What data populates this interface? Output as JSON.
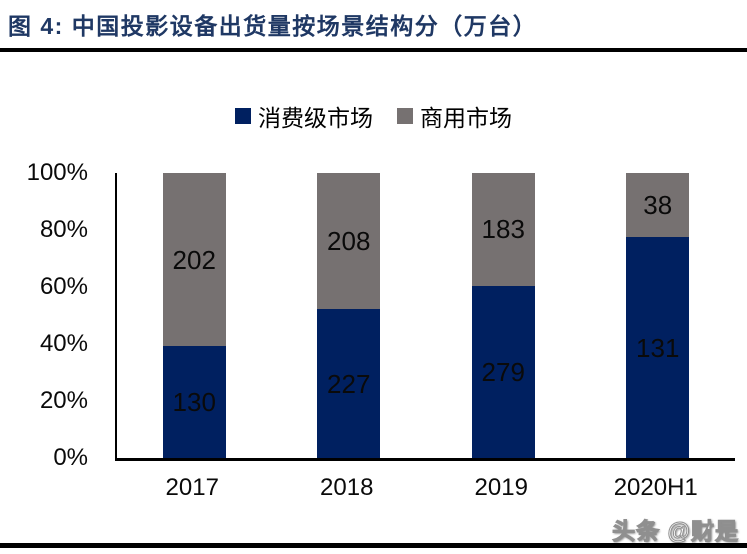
{
  "page": {
    "title": "图 4: 中国投影设备出货量按场景结构分（万台）",
    "watermark": "头条 @财是"
  },
  "colors": {
    "consumer_navy": "#002060",
    "commercial_gray": "#767171",
    "title_navy": "#1F3864",
    "rule_black": "#000000"
  },
  "chart_data": {
    "type": "bar",
    "variant": "100%-stacked-column",
    "title": "中国投影设备出货量按场景结构分（万台）",
    "categories": [
      "2017",
      "2018",
      "2019",
      "2020H1"
    ],
    "series": [
      {
        "name": "消费级市场",
        "color": "#002060",
        "values": [
          130,
          227,
          279,
          131
        ]
      },
      {
        "name": "商用市场",
        "color": "#767171",
        "values": [
          202,
          208,
          183,
          38
        ]
      }
    ],
    "y_ticks": [
      "100%",
      "80%",
      "60%",
      "40%",
      "20%",
      "0%"
    ],
    "ylim": [
      0,
      100
    ],
    "ylabel": "",
    "xlabel": "",
    "grid": false,
    "legend_position": "top-center",
    "data_labels": "inside-center"
  }
}
